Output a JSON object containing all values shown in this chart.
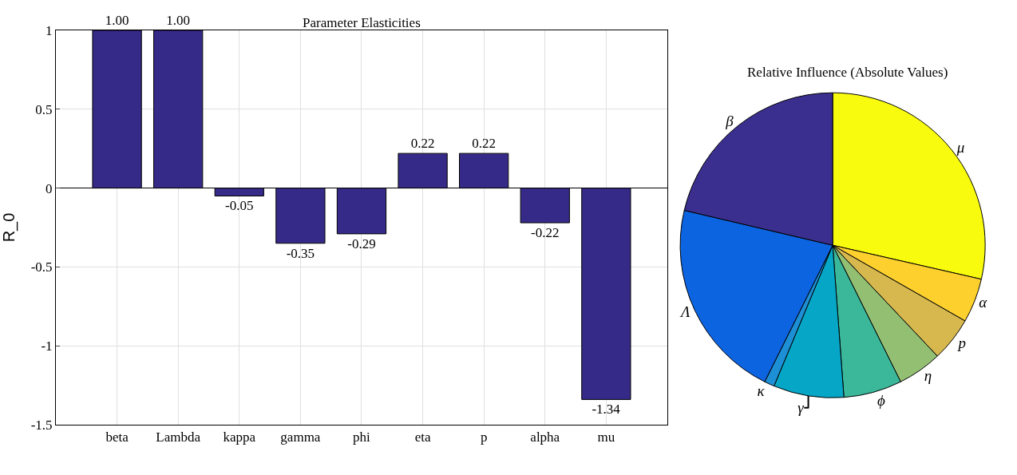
{
  "chart_data": [
    {
      "type": "bar",
      "title": "Parameter Elasticities",
      "ylabel": "R_0",
      "categories": [
        "beta",
        "Lambda",
        "kappa",
        "gamma",
        "phi",
        "eta",
        "p",
        "alpha",
        "mu"
      ],
      "values": [
        1.0,
        1.0,
        -0.05,
        -0.35,
        -0.29,
        0.22,
        0.22,
        -0.22,
        -1.34
      ],
      "value_labels": [
        "1.00",
        "1.00",
        "-0.05",
        "-0.35",
        "-0.29",
        "0.22",
        "0.22",
        "-0.22",
        "-1.34"
      ],
      "color": "#352a87",
      "ylim": [
        -1.5,
        1
      ],
      "yticks": [
        -1.5,
        -1,
        -0.5,
        0,
        0.5,
        1
      ],
      "grid": true
    },
    {
      "type": "pie",
      "title": "Relative Influence (Absolute Values)",
      "categories": [
        "μ",
        "α",
        "p",
        "η",
        "ϕ",
        "γ",
        "κ",
        "Λ",
        "β"
      ],
      "values": [
        28.57,
        4.69,
        4.69,
        4.69,
        6.18,
        7.46,
        1.07,
        21.32,
        21.32
      ],
      "colors": [
        "#f9fb0e",
        "#fdd02e",
        "#d7b84e",
        "#93bf72",
        "#3bb79a",
        "#05a6c6",
        "#1d8fd4",
        "#0d64e0",
        "#3a2f8e"
      ]
    }
  ]
}
